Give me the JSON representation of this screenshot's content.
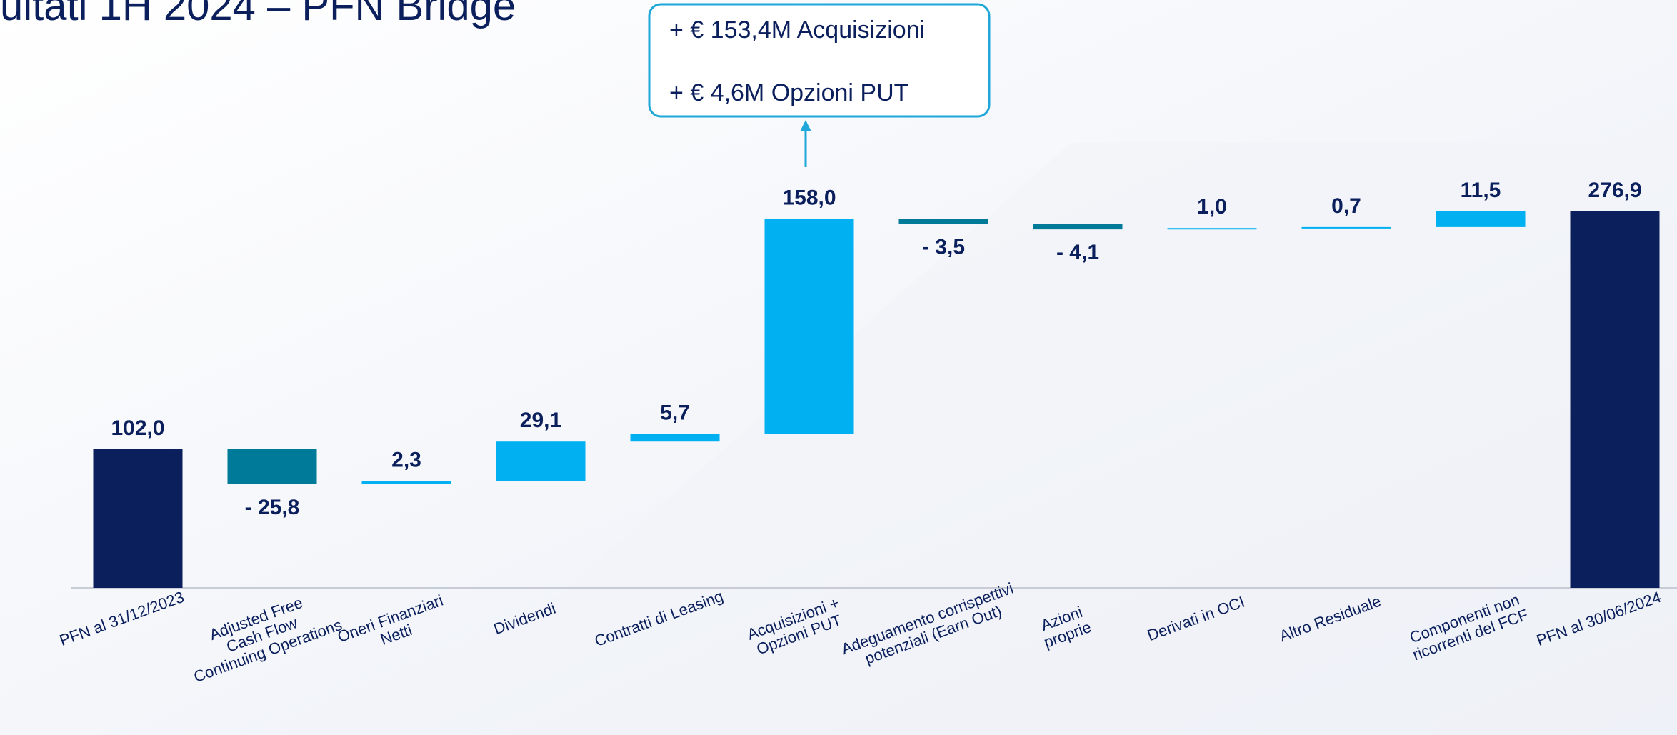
{
  "chart_data": {
    "type": "waterfall",
    "title": "ultati 1H 2024 – PFN Bridge",
    "annotation": [
      "+ € 153,4M Acquisizioni",
      "+ € 4,6M Opzioni PUT"
    ],
    "categories": [
      "PFN al 31/12/2023",
      "Adjusted Free\nCash Flow\nContinuing Operations",
      "Oneri Finanziari\nNetti",
      "Dividendi",
      "Contratti di Leasing",
      "Acquisizioni +\nOpzioni PUT",
      "Adeguamento corrispettivi\npotenziali (Earn Out)",
      "Azioni\nproprie",
      "Derivati in OCI",
      "Altro Residuale",
      "Componenti non\nricorrenti del FCF",
      "PFN al 30/06/2024"
    ],
    "measure": [
      "absolute",
      "relative",
      "relative",
      "relative",
      "relative",
      "relative",
      "relative",
      "relative",
      "relative",
      "relative",
      "relative",
      "total"
    ],
    "values": [
      102.0,
      -25.8,
      2.3,
      29.1,
      5.7,
      158.0,
      -3.5,
      -4.1,
      1.0,
      0.7,
      11.5,
      276.9
    ],
    "value_labels": [
      "102,0",
      "- 25,8",
      "2,3",
      "29,1",
      "5,7",
      "158,0",
      "- 3,5",
      "- 4,1",
      "1,0",
      "0,7",
      "11,5",
      "276,9"
    ],
    "colors": [
      "#0b1f5c",
      "#007a99",
      "#00b0f0",
      "#00b0f0",
      "#00b0f0",
      "#00b0f0",
      "#007a99",
      "#007a99",
      "#00b0f0",
      "#00b0f0",
      "#00b0f0",
      "#0b1f5c"
    ]
  }
}
